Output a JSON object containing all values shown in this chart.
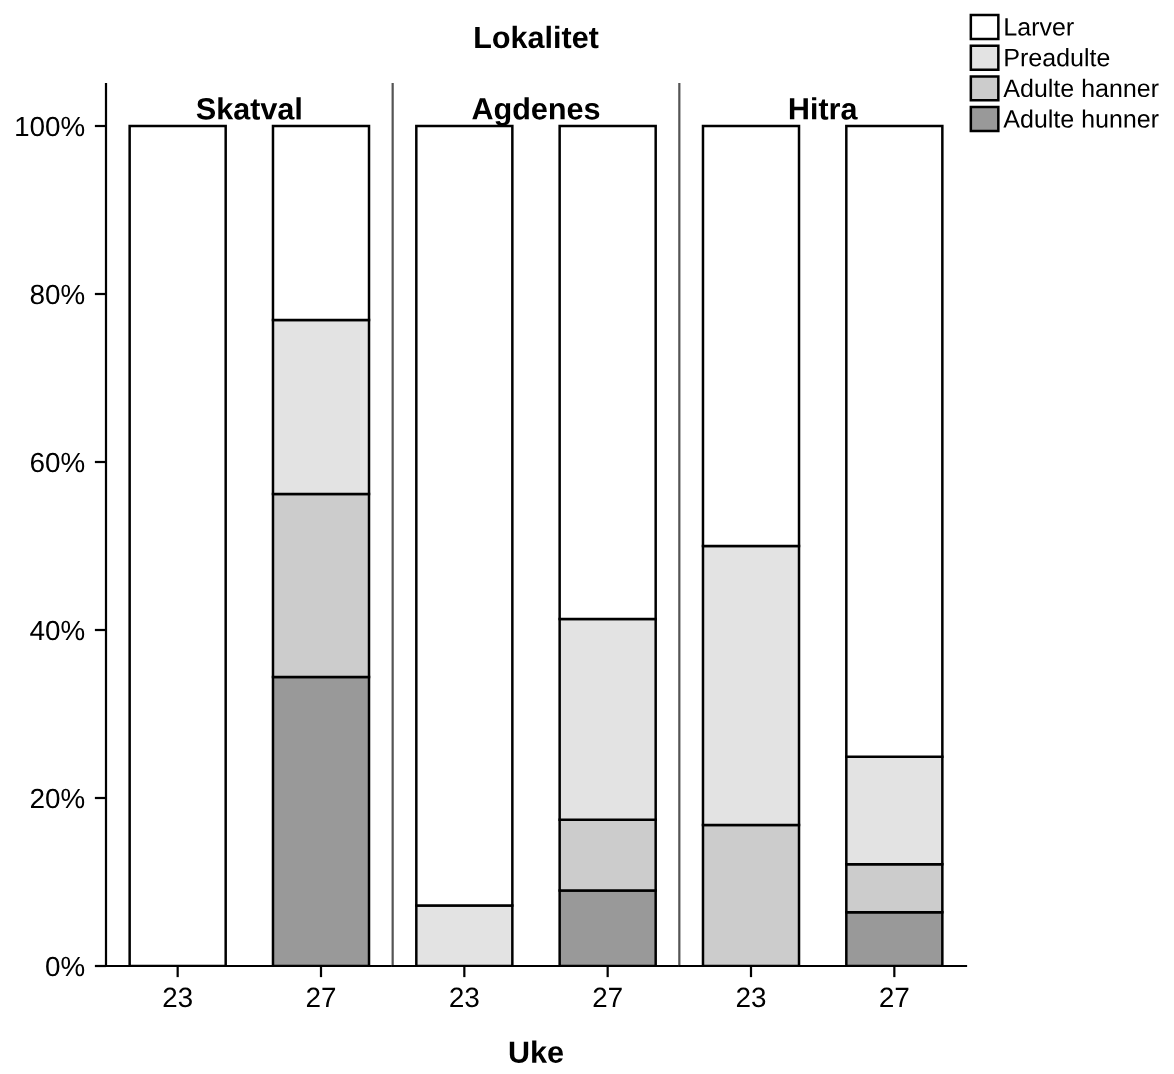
{
  "chart_data": [
    {
      "type": "bar",
      "title": "Skatval",
      "annotations": [
        "Lokalitet"
      ],
      "categories": [
        "23",
        "27"
      ],
      "stacked": true,
      "legend": "top right",
      "ylim": [
        0,
        105
      ],
      "yticks": [
        {
          "value": 0,
          "label": "0%"
        },
        {
          "value": 20,
          "label": "20%"
        },
        {
          "value": 40,
          "label": "40%"
        },
        {
          "value": 60,
          "label": "60%"
        },
        {
          "value": 80,
          "label": "80%"
        },
        {
          "value": 100,
          "label": "100%"
        }
      ],
      "series": [
        {
          "name": "Adulte hunner",
          "color": "#999999",
          "values": [
            0,
            34.4
          ]
        },
        {
          "name": "Adulte hanner",
          "color": "#cccccc",
          "values": [
            0,
            21.8
          ]
        },
        {
          "name": "Preadulte",
          "color": "#e3e3e3",
          "values": [
            0,
            20.7
          ]
        },
        {
          "name": "Larver",
          "color": "#ffffff",
          "values": [
            100,
            23.1
          ]
        }
      ]
    },
    {
      "type": "bar",
      "title": "Agdenes",
      "xlabel": "Uke",
      "categories": [
        "23",
        "27"
      ],
      "stacked": true,
      "ylim": [
        0,
        105
      ],
      "tick_labels": "x",
      "series": [
        {
          "color": "#999999",
          "values": [
            0,
            9.0
          ]
        },
        {
          "color": "#cccccc",
          "values": [
            0,
            8.4
          ]
        },
        {
          "color": "#e3e3e3",
          "values": [
            7.2,
            23.9
          ]
        },
        {
          "color": "#ffffff",
          "values": [
            92.8,
            58.7
          ]
        }
      ]
    },
    {
      "type": "bar",
      "title": "Hitra",
      "categories": [
        "23",
        "27"
      ],
      "stacked": true,
      "ylim": [
        0,
        105
      ],
      "tick_labels": "x",
      "series": [
        {
          "color": "#999999",
          "values": [
            0,
            6.4
          ]
        },
        {
          "color": "#cccccc",
          "values": [
            16.8,
            5.7
          ]
        },
        {
          "color": "#e3e3e3",
          "values": [
            33.2,
            12.8
          ]
        },
        {
          "color": "#ffffff",
          "values": [
            50.0,
            75.1
          ]
        }
      ]
    }
  ]
}
